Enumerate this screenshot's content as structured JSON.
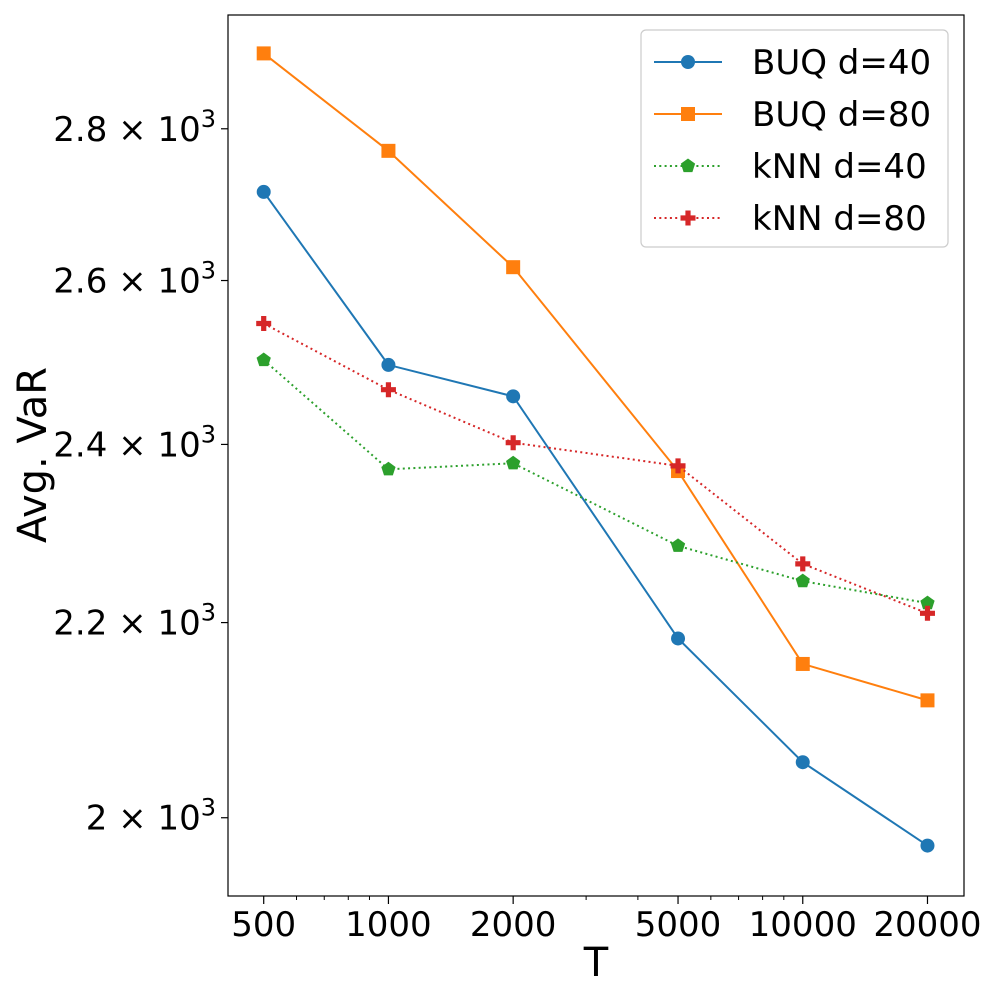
{
  "chart_data": {
    "type": "line",
    "xlabel": "T",
    "ylabel": "Avg. VaR",
    "xscale": "log",
    "yscale": "log",
    "xlim": [
      410,
      24500
    ],
    "ylim": [
      1925,
      2960
    ],
    "x": [
      500,
      1000,
      2000,
      5000,
      10000,
      20000
    ],
    "x_tick_labels": [
      "500",
      "1000",
      "2000",
      "5000",
      "10000",
      "20000"
    ],
    "y_ticks": [
      {
        "value": 2000,
        "mantissa": "2",
        "label": "2 × 10^3"
      },
      {
        "value": 2200,
        "mantissa": "2.2",
        "label": "2.2 × 10^3"
      },
      {
        "value": 2400,
        "mantissa": "2.4",
        "label": "2.4 × 10^3"
      },
      {
        "value": 2600,
        "mantissa": "2.6",
        "label": "2.6 × 10^3"
      },
      {
        "value": 2800,
        "mantissa": "2.8",
        "label": "2.8 × 10^3"
      }
    ],
    "y_tick_times": "×",
    "y_tick_base": "10",
    "y_tick_exp": "3",
    "grid": false,
    "legend_position": "top-right",
    "series": [
      {
        "name": "BUQ d=40",
        "color": "#1f77b4",
        "marker": "circle",
        "line": "solid",
        "values": [
          2715,
          2495,
          2457,
          2183,
          2055,
          1973
        ]
      },
      {
        "name": "BUQ d=80",
        "color": "#ff7f0e",
        "marker": "square",
        "line": "solid",
        "values": [
          2905,
          2770,
          2617,
          2369,
          2156,
          2118
        ]
      },
      {
        "name": "kNN d=40",
        "color": "#2ca02c",
        "marker": "pentagon",
        "line": "dotted",
        "values": [
          2501,
          2371,
          2378,
          2284,
          2245,
          2221
        ]
      },
      {
        "name": "kNN d=80",
        "color": "#d62728",
        "marker": "plus",
        "line": "dotted",
        "values": [
          2546,
          2465,
          2402,
          2375,
          2264,
          2210
        ]
      }
    ]
  }
}
